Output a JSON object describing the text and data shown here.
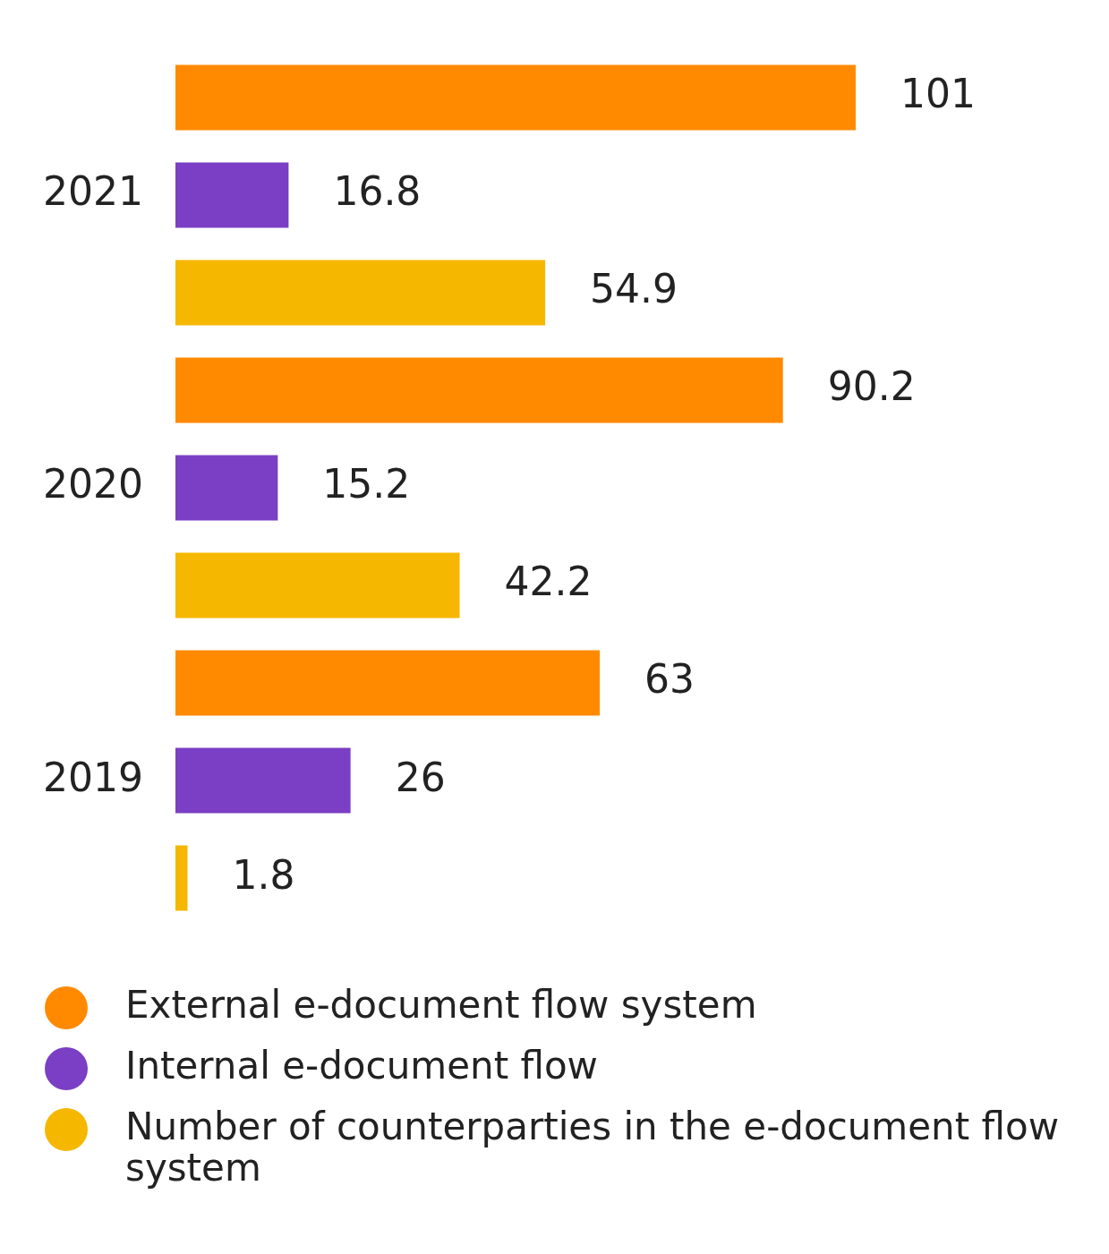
{
  "chart_data": {
    "type": "bar",
    "orientation": "horizontal",
    "categories": [
      "2021",
      "2020",
      "2019"
    ],
    "series": [
      {
        "name": "External e-document flow system",
        "color": "#ff8a00",
        "values": [
          101,
          90.2,
          63
        ]
      },
      {
        "name": "Internal e-document flow",
        "color": "#7a3fc4",
        "values": [
          16.8,
          15.2,
          26
        ]
      },
      {
        "name": "Number of counterparties in the e-document flow system",
        "color": "#f5b700",
        "values": [
          54.9,
          42.2,
          1.8
        ]
      }
    ],
    "data_labels": true,
    "legend": "bottom",
    "marker": "circle"
  }
}
